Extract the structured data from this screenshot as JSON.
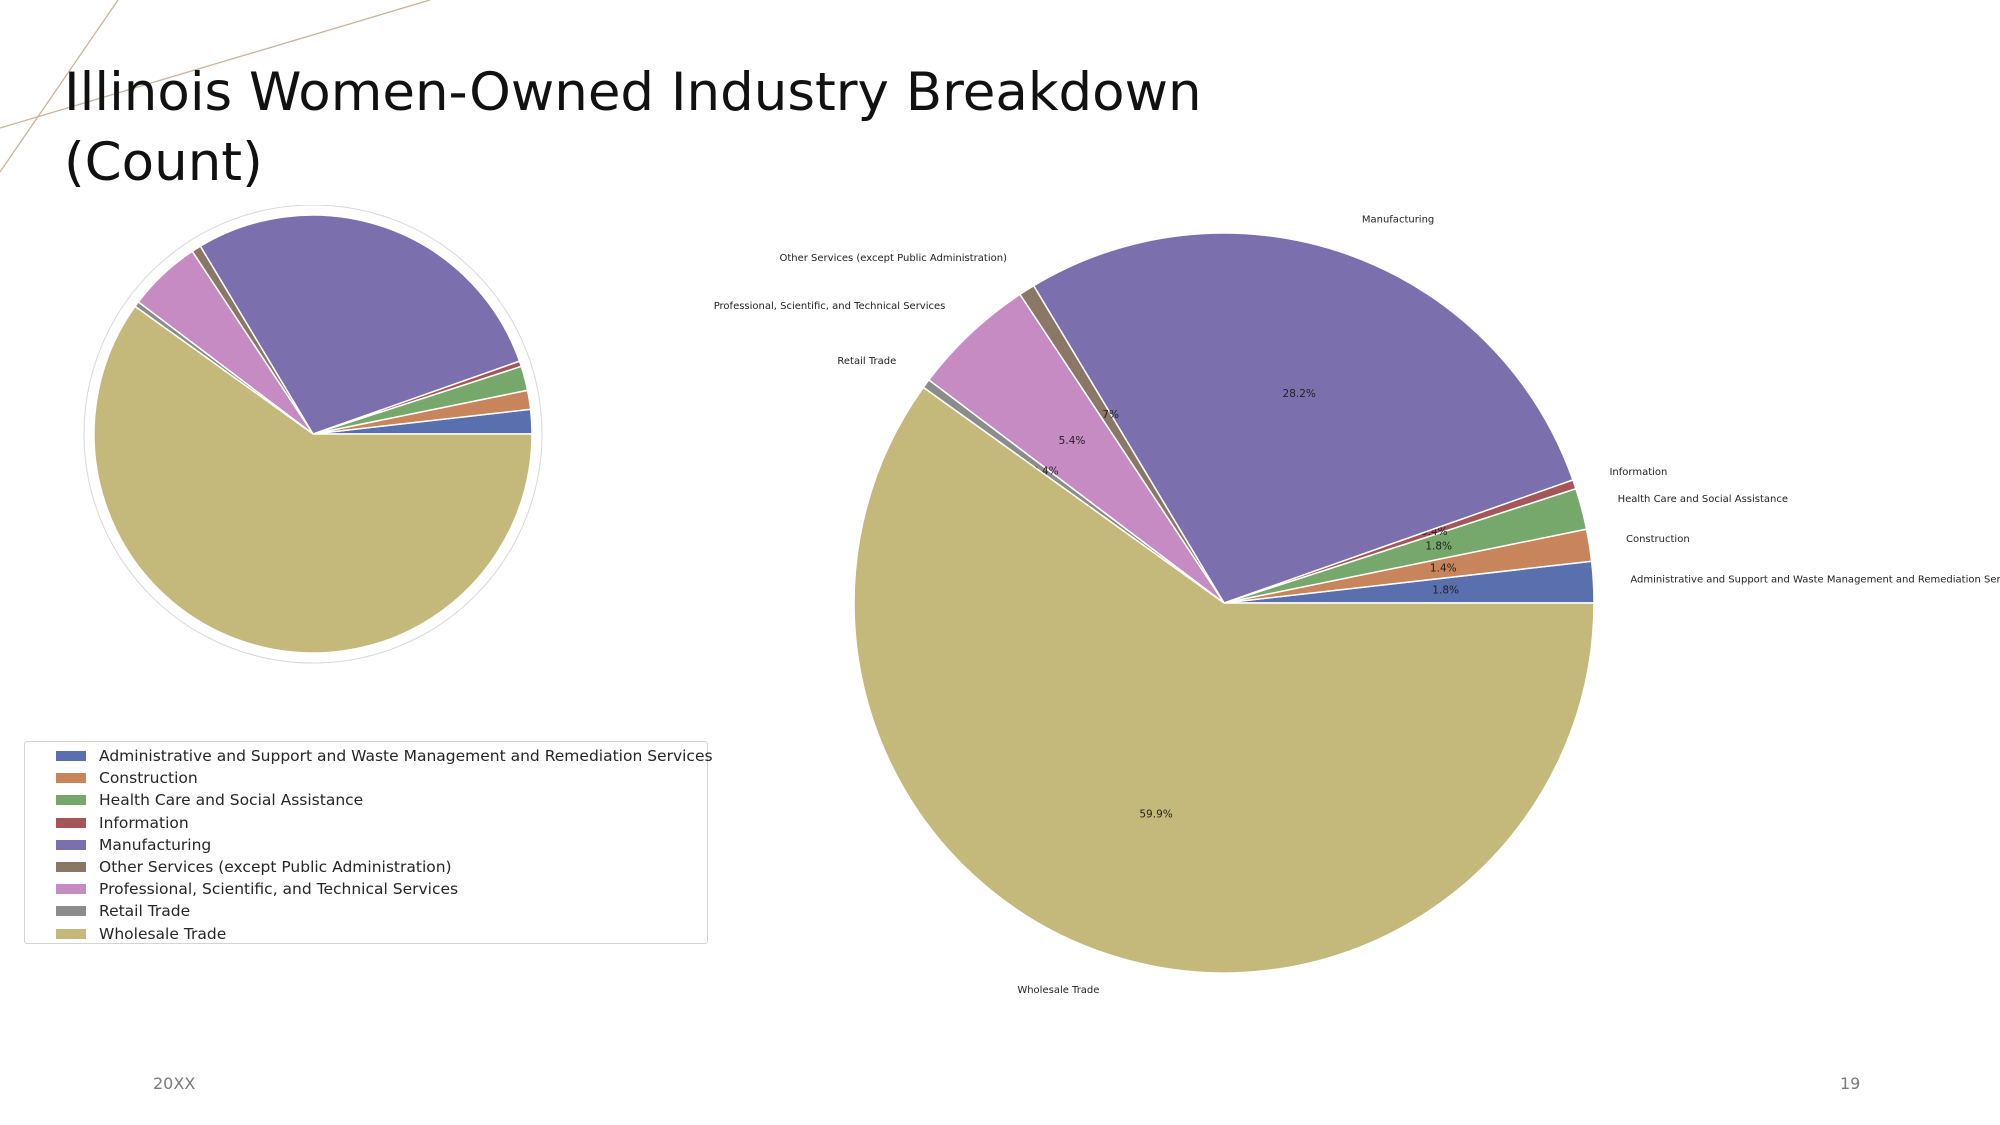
{
  "slide": {
    "title": "Illinois Women-Owned Industry Breakdown (Count)",
    "footer_date": "20XX",
    "page_number": "19"
  },
  "colors": {
    "accent_line": "#c9b49a",
    "legend_border": "#d4d4d4"
  },
  "chart_data": [
    {
      "type": "pie",
      "title": "",
      "categories": [
        "Administrative and Support and Waste Management and Remediation Services",
        "Construction",
        "Health Care and Social Assistance",
        "Information",
        "Manufacturing",
        "Other Services (except Public Administration)",
        "Professional, Scientific, and Technical Services",
        "Retail Trade",
        "Wholesale Trade"
      ],
      "values": [
        1.8,
        1.4,
        1.8,
        0.4,
        28.2,
        0.7,
        5.4,
        0.4,
        59.9
      ],
      "colors": [
        "#5a6fad",
        "#c8845a",
        "#77a86b",
        "#a45659",
        "#7b70ad",
        "#8b7766",
        "#c58bc2",
        "#8c8c8c",
        "#c4b97a"
      ],
      "start_angle": 0,
      "direction": "counterclockwise",
      "legend": "bottom-left",
      "show_labels": false,
      "show_pct": false
    },
    {
      "type": "pie",
      "title": "",
      "categories": [
        "Administrative and Support and Waste Management and Remediation Services",
        "Construction",
        "Health Care and Social Assistance",
        "Information",
        "Manufacturing",
        "Other Services (except Public Administration)",
        "Professional, Scientific, and Technical Services",
        "Retail Trade",
        "Wholesale Trade"
      ],
      "values": [
        1.8,
        1.4,
        1.8,
        0.4,
        28.2,
        0.7,
        5.4,
        0.4,
        59.9
      ],
      "percent_labels": [
        "1.8%",
        "1.4%",
        "1.8%",
        "0.4%",
        "28.2%",
        "0.7%",
        "5.4%",
        "0.4%",
        "59.9%"
      ],
      "colors": [
        "#5a6fad",
        "#c8845a",
        "#77a86b",
        "#a45659",
        "#7b70ad",
        "#8b7766",
        "#c58bc2",
        "#8c8c8c",
        "#c4b97a"
      ],
      "start_angle": 0,
      "direction": "counterclockwise",
      "legend": "none",
      "show_labels": true,
      "show_pct": true
    }
  ]
}
